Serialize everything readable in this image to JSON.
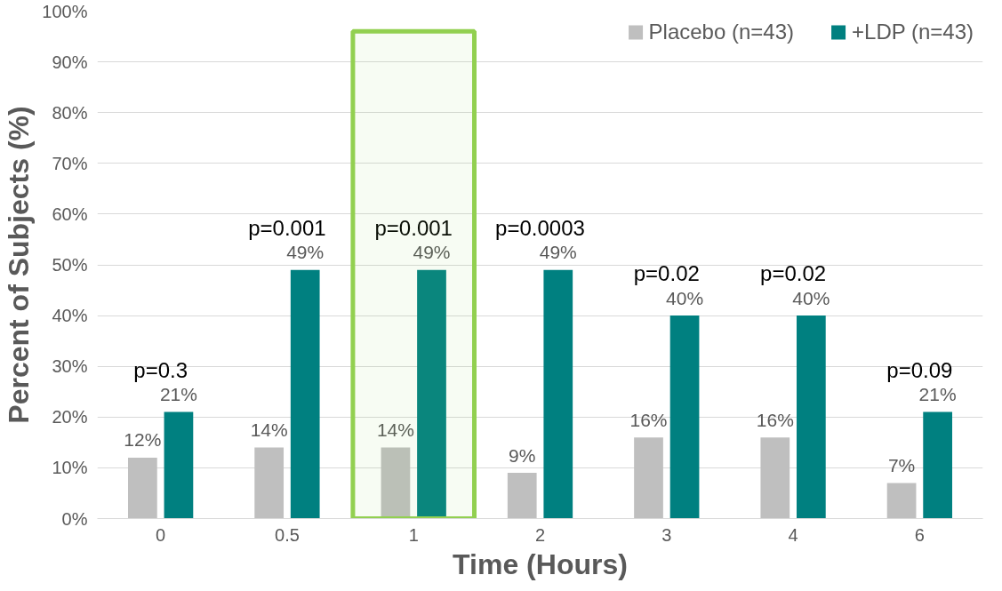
{
  "chart_data": {
    "type": "bar",
    "xlabel": "Time (Hours)",
    "ylabel": "Percent of Subjects (%)",
    "categories": [
      "0",
      "0.5",
      "1",
      "2",
      "3",
      "4",
      "6"
    ],
    "series": [
      {
        "name": "Placebo (n=43)",
        "color": "#bfbfbf",
        "values": [
          12,
          14,
          14,
          9,
          16,
          16,
          7
        ]
      },
      {
        "name": "+LDP (n=43)",
        "color": "#008080",
        "values": [
          21,
          49,
          49,
          49,
          40,
          40,
          21
        ]
      }
    ],
    "ylim": [
      0,
      100
    ],
    "yticks": [
      {
        "value": 0,
        "label": "0%"
      },
      {
        "value": 10,
        "label": "10%"
      },
      {
        "value": 20,
        "label": "20%"
      },
      {
        "value": 30,
        "label": "30%"
      },
      {
        "value": 40,
        "label": "40%"
      },
      {
        "value": 50,
        "label": "50%"
      },
      {
        "value": 60,
        "label": "60%"
      },
      {
        "value": 70,
        "label": "70%"
      },
      {
        "value": 80,
        "label": "80%"
      },
      {
        "value": 90,
        "label": "90%"
      },
      {
        "value": 100,
        "label": "100%"
      }
    ],
    "value_labels": [
      [
        "12%",
        "14%",
        "14%",
        "9%",
        "16%",
        "16%",
        "7%"
      ],
      [
        "21%",
        "49%",
        "49%",
        "49%",
        "40%",
        "40%",
        "21%"
      ]
    ],
    "annotations": [
      "p=0.3",
      "p=0.001",
      "p=0.001",
      "p=0.0003",
      "p=0.02",
      "p=0.02",
      "p=0.09"
    ],
    "bands": [
      {
        "axis": "x",
        "from": "1",
        "to": "1",
        "color": "#92d050"
      }
    ],
    "grid": "y",
    "legend": "top right"
  }
}
